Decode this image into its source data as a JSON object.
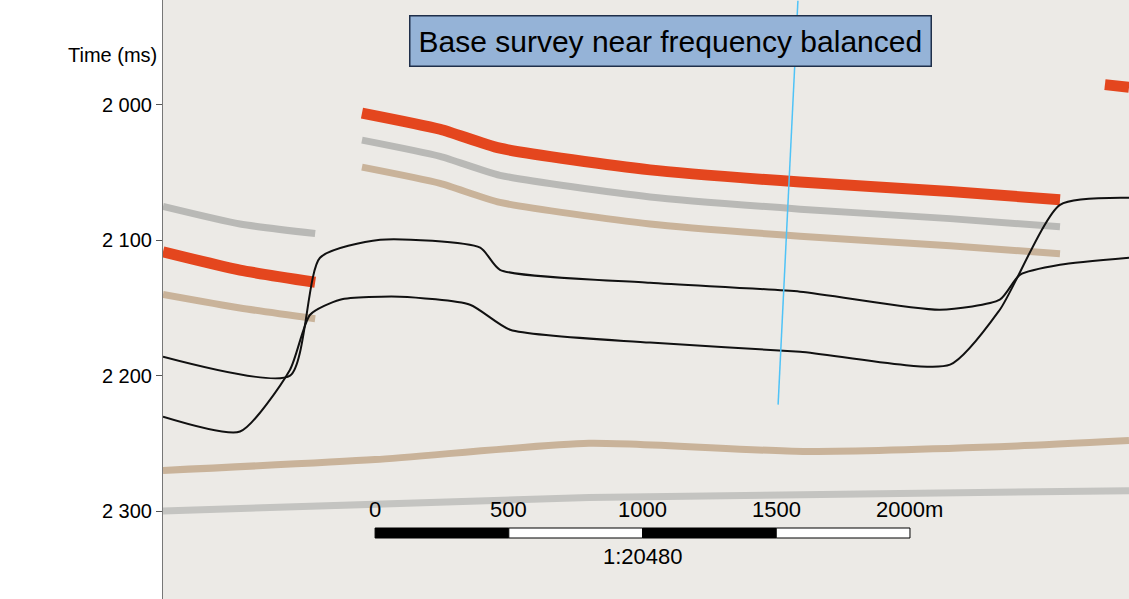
{
  "chart_data": {
    "type": "line",
    "title": "Base survey near frequency balanced",
    "ylabel": "Time (ms)",
    "xlim": [
      -793,
      2819
    ],
    "ylim": [
      2365,
      1922.5
    ],
    "yticks": [
      {
        "value": 2000,
        "label": "2 000"
      },
      {
        "value": 2100,
        "label": "2 100"
      },
      {
        "value": 2200,
        "label": "2 200"
      },
      {
        "value": 2300,
        "label": "2 300"
      }
    ],
    "tick_labels": "y",
    "grid": false,
    "series": [
      {
        "color": "#b9b9b6",
        "x": [
          -49,
          243,
          467,
          1028,
          1589,
          2150,
          2561
        ],
        "values": [
          2026,
          2038,
          2052,
          2068,
          2077,
          2084,
          2090
        ]
      },
      {
        "color": "#c9b39a",
        "x": [
          -49,
          243,
          467,
          1028,
          1589,
          2150,
          2561
        ],
        "values": [
          2046,
          2058,
          2072,
          2088,
          2097,
          2104,
          2110
        ]
      },
      {
        "color": "#b9b9b6",
        "x": [
          -793,
          -505,
          -224
        ],
        "values": [
          2075,
          2088,
          2095
        ]
      },
      {
        "color": "#c9b39a",
        "x": [
          -793,
          -505,
          -224
        ],
        "values": [
          2140,
          2150,
          2158
        ]
      },
      {
        "color": "#c9b39a",
        "x": [
          -793,
          0,
          800,
          1600,
          2400,
          2819
        ],
        "values": [
          2270,
          2262,
          2250,
          2256,
          2252,
          2248
        ]
      },
      {
        "color": "#c4c4c1",
        "x": [
          -793,
          800,
          2819
        ],
        "values": [
          2300,
          2290,
          2285
        ]
      },
      {
        "color": "#e4461e",
        "x": [
          -49,
          243,
          467,
          1028,
          1589,
          2150,
          2561
        ],
        "values": [
          2006,
          2018,
          2032,
          2048,
          2057,
          2064,
          2070
        ]
      },
      {
        "color": "#e4461e",
        "x": [
          -793,
          -505,
          -224
        ],
        "values": [
          2108.5,
          2122,
          2131
        ]
      },
      {
        "color": "#e4461e",
        "x": [
          2729,
          2819
        ],
        "values": [
          1985,
          1987
        ]
      },
      {
        "color": "#111111",
        "x": [
          -793,
          -318,
          -206,
          19,
          393,
          467,
          1028,
          1589,
          2112,
          2336,
          2411,
          2561,
          2819
        ],
        "values": [
          2186,
          2200,
          2112.9,
          2099.6,
          2105.5,
          2121.8,
          2131.4,
          2138,
          2151.3,
          2143.9,
          2125.5,
          2118.1,
          2112.9
        ]
      },
      {
        "color": "#111111",
        "x": [
          -793,
          -505,
          -318,
          -243,
          -131,
          93,
          355,
          505,
          1028,
          1589,
          2150,
          2336,
          2561,
          2819
        ],
        "values": [
          2230.3,
          2241.3,
          2195.6,
          2155,
          2143.9,
          2141.7,
          2147.6,
          2166.1,
          2175.6,
          2182.3,
          2191.9,
          2151.3,
          2073.8,
          2068.6
        ]
      },
      {
        "color": "#4fc3f7",
        "x": [
          1581,
          1507
        ],
        "values": [
          1923,
          2221.4
        ]
      }
    ],
    "scale_bar": {
      "ticks": [
        0,
        500,
        1000,
        1500,
        {
          "value": 2000,
          "label": "2000m"
        }
      ],
      "label": "1:20480"
    }
  }
}
